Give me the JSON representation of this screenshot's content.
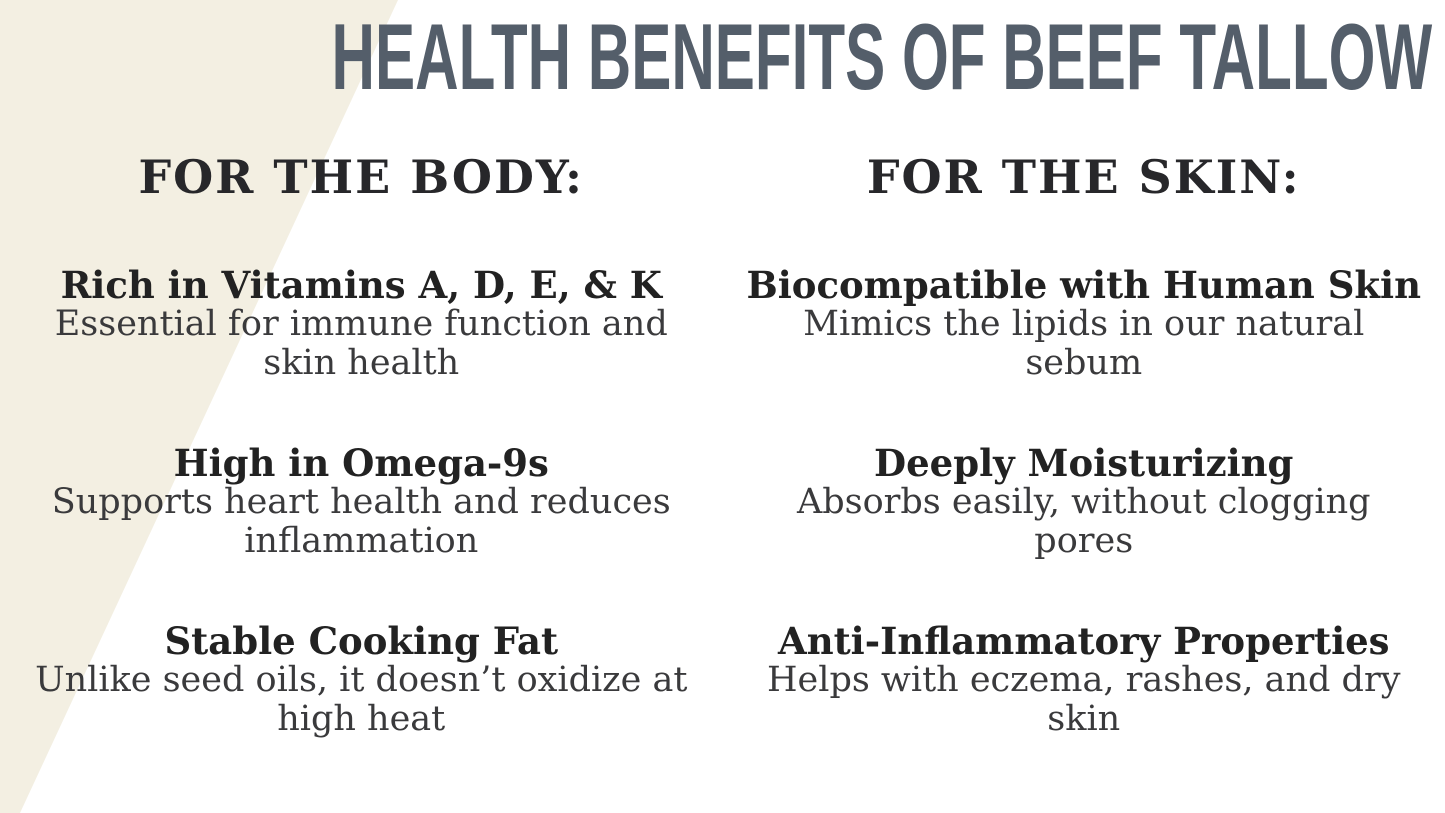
{
  "title": "HEALTH BENEFITS OF BEEF TALLOW",
  "colors": {
    "background": "#ffffff",
    "accent_shape": "#f3efe2",
    "title": "#545e6a",
    "header_text": "#27272a",
    "heading_text": "#222222",
    "body_text": "#3a3a3c"
  },
  "columns": [
    {
      "header": "FOR THE BODY:",
      "items": [
        {
          "heading": "Rich in Vitamins A, D, E, & K",
          "description": "Essential for immune function and\nskin health"
        },
        {
          "heading": "High in Omega-9s",
          "description": "Supports heart health and reduces\ninflammation"
        },
        {
          "heading": "Stable Cooking Fat",
          "description": "Unlike seed oils, it doesn’t oxidize at\nhigh heat"
        }
      ]
    },
    {
      "header": "FOR THE SKIN:",
      "items": [
        {
          "heading": "Biocompatible with Human Skin",
          "description": "Mimics the lipids in our natural\nsebum"
        },
        {
          "heading": "Deeply Moisturizing",
          "description": "Absorbs easily, without clogging\npores"
        },
        {
          "heading": "Anti-Inflammatory Properties",
          "description": "Helps with eczema, rashes, and dry\nskin"
        }
      ]
    }
  ]
}
